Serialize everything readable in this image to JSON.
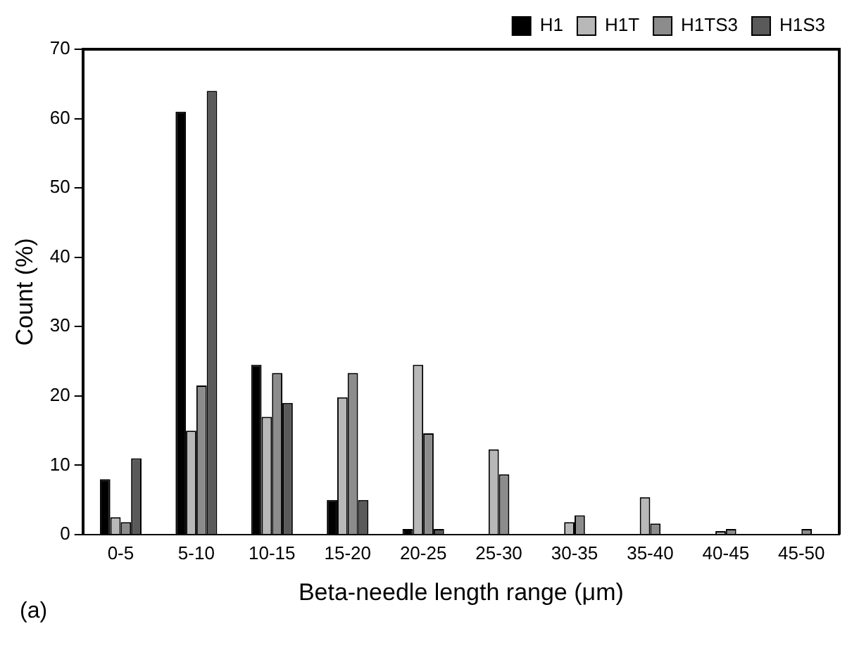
{
  "chart_data": {
    "type": "bar",
    "xlabel": "Beta-needle length range (μm)",
    "ylabel": "Count (%)",
    "categories": [
      "0-5",
      "5-10",
      "10-15",
      "15-20",
      "20-25",
      "25-30",
      "30-35",
      "35-40",
      "40-45",
      "45-50"
    ],
    "series": [
      {
        "name": "H1",
        "color": "#000000",
        "values": [
          8,
          61,
          24.5,
          5,
          0.8,
          null,
          null,
          null,
          null,
          null
        ]
      },
      {
        "name": "H1T",
        "color": "#b8b8b8",
        "values": [
          2.5,
          15,
          17,
          19.8,
          24.5,
          12.3,
          1.8,
          5.4,
          0.5,
          null
        ]
      },
      {
        "name": "H1TS3",
        "color": "#8c8c8c",
        "values": [
          1.8,
          21.5,
          23.3,
          23.3,
          14.6,
          8.7,
          2.8,
          1.6,
          0.8,
          0.8
        ]
      },
      {
        "name": "H1S3",
        "color": "#5a5a5a",
        "values": [
          11,
          64,
          19,
          5,
          0.8,
          null,
          null,
          null,
          null,
          null
        ]
      }
    ],
    "ylim": [
      0,
      70
    ],
    "yticks": [
      0,
      10,
      20,
      30,
      40,
      50,
      60,
      70
    ],
    "grid": false,
    "legend": "top right",
    "annotations": [
      "(a)"
    ]
  }
}
